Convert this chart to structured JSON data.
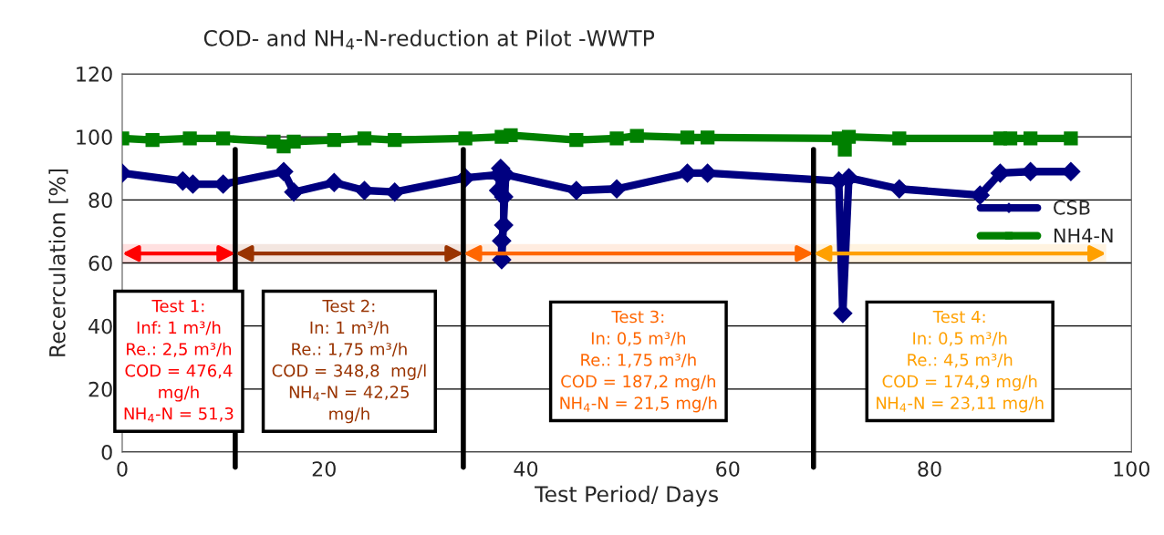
{
  "chart_data": {
    "type": "line",
    "title": "COD- and NH$_{4}$-N-reduction at Pilot -WWTP",
    "xlabel": "Test Period/ Days",
    "ylabel": "Recerculation [%]",
    "xlim": [
      0,
      100
    ],
    "xticks": [
      0,
      20,
      40,
      60,
      80,
      100
    ],
    "ylim": [
      0,
      120
    ],
    "yticks": [
      0,
      20,
      40,
      60,
      80,
      100,
      120
    ],
    "grid": "y",
    "legend": "right",
    "series": [
      {
        "name": "CSB",
        "color": "#000080",
        "marker": "diamond",
        "x": [
          0,
          6,
          7,
          10,
          16,
          17,
          21,
          24,
          27,
          34,
          37.3,
          37.5,
          37.3,
          37.8,
          37.8,
          37.6,
          37.6,
          38,
          45,
          49,
          56,
          58,
          71,
          71.4,
          72,
          77,
          85,
          87,
          90,
          94
        ],
        "values": [
          88.5,
          86,
          85,
          85,
          89,
          82.5,
          85.5,
          83,
          82.5,
          87,
          88,
          90,
          83,
          81,
          72,
          67,
          61,
          88,
          83,
          83.5,
          88.5,
          88.5,
          86,
          44,
          87,
          83.5,
          81.5,
          88.5,
          89,
          89
        ]
      },
      {
        "name": "NH4-N",
        "color": "#008000",
        "marker": "square",
        "x": [
          0,
          3,
          6.7,
          10,
          15,
          16,
          17,
          21,
          24,
          27,
          34,
          37.6,
          38.5,
          45,
          49,
          51,
          56,
          58,
          71,
          71.6,
          72,
          77,
          87,
          88,
          90,
          94
        ],
        "values": [
          99.5,
          99,
          99.5,
          99.5,
          98.5,
          97,
          98.5,
          99,
          99.5,
          99,
          99.5,
          100,
          100.5,
          99,
          99.5,
          100.3,
          99.8,
          99.8,
          99.5,
          96,
          100,
          99.5,
          99.5,
          99.5,
          99.5,
          99.5
        ]
      }
    ],
    "ref_lines": [
      {
        "axis": "x",
        "value": 11.2,
        "color": "#000000"
      },
      {
        "axis": "x",
        "value": 33.8,
        "color": "#000000"
      },
      {
        "axis": "x",
        "value": 68.5,
        "color": "#000000"
      }
    ],
    "bands": [
      {
        "axis": "x",
        "from": 0,
        "to": 11.2,
        "color": "#ff0000",
        "label": "Test 1:\nInf: 1 m³/h\nRe.: 2,5 m³/h\nCOD = 476,4\nmg/h\nNH$_{4}$-N = 51,3"
      },
      {
        "axis": "x",
        "from": 11.2,
        "to": 33.8,
        "color": "#993300",
        "label": "Test 2:\nIn: 1 m³/h\nRe.: 1,75 m³/h\nCOD = 348,8  mg/l\nNH$_{4}$-N = 42,25\nmg/h"
      },
      {
        "axis": "x",
        "from": 33.8,
        "to": 68.5,
        "color": "#ff6600",
        "label": "Test 3:\nIn: 0,5 m³/h\nRe.: 1,75 m³/h\nCOD = 187,2 mg/h\nNH$_{4}$-N = 21,5 mg/h"
      },
      {
        "axis": "x",
        "from": 68.5,
        "to": 97.5,
        "color": "#ffa000",
        "label": "Test 4:\nIn: 0,5 m³/h\nRe.: 4,5 m³/h\nCOD = 174,9 mg/h\nNH$_{4}$-N = 23,11 mg/h"
      }
    ]
  }
}
